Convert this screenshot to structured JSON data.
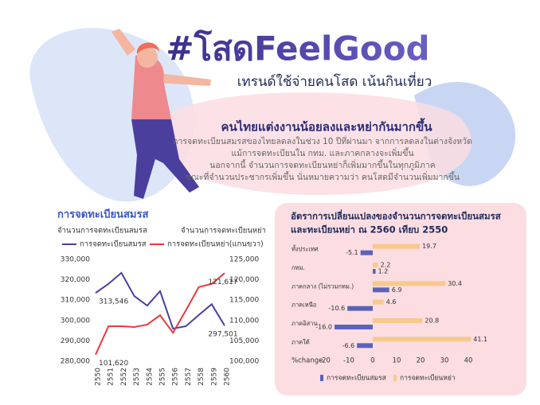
{
  "header": {
    "title": "#โสดFeelGood",
    "subtitle": "เทรนด์ใช้จ่ายคนโสด เน้นกินเที่ยว"
  },
  "summary": {
    "heading": "คนไทยแต่งงานน้อยลงและหย่ากันมากขึ้น",
    "lines": [
      "การจดทะเบียนสมรสของไทยลดลงในช่วง 10 ปีที่ผ่านมา จากการลดลงในต่างจังหวัด",
      "แม้การจดทะเบียนใน กทม. และภาคกลางจะเพิ่มขึ้น",
      "นอกจากนี้ จำนวนการจดทะเบียนหย่าก็เพิ่มมากขึ้นในทุกภูมิภาค",
      "ขณะที่จำนวนประชากรเพิ่มขึ้น นั่นหมายความว่า คนโสดมีจำนวนเพิ่มมากขึ้น"
    ]
  },
  "chart_data": [
    {
      "type": "line",
      "title": "การจดทะเบียนสมรส",
      "ylabel": "จำนวนการจดทะเบียนสมรส",
      "y2label": "จำนวนการจดทะเบียนหย่า",
      "categories": [
        "2550",
        "2551",
        "2552",
        "2553",
        "2554",
        "2555",
        "2556",
        "2557",
        "2558",
        "2559",
        "2560"
      ],
      "series": [
        {
          "name": "การจดทะเบียนสมรส",
          "color": "#4b3f9e",
          "values": [
            313546,
            318000,
            323400,
            312000,
            307300,
            314400,
            296000,
            297200,
            302700,
            308000,
            297501
          ],
          "value_labels": [
            "313,546",
            null,
            null,
            null,
            null,
            null,
            null,
            null,
            null,
            null,
            "297,501"
          ]
        },
        {
          "name": "การจดทะเบียนหย่า(แกนขวา)",
          "color": "#e8393f",
          "axis": "y2",
          "values": [
            101620,
            108600,
            108600,
            108400,
            109000,
            111300,
            107000,
            112500,
            118200,
            119000,
            121617
          ],
          "value_labels": [
            "101,620",
            null,
            null,
            null,
            null,
            null,
            null,
            null,
            null,
            null,
            "121,617"
          ]
        }
      ],
      "ylim": [
        280000,
        330000
      ],
      "yticks": [
        {
          "value": 280000,
          "label": "280,000"
        },
        {
          "value": 290000,
          "label": "290,000"
        },
        {
          "value": 300000,
          "label": "300,000"
        },
        {
          "value": 310000,
          "label": "310,000"
        },
        {
          "value": 320000,
          "label": "320,000"
        },
        {
          "value": 330000,
          "label": "330,000"
        }
      ],
      "y2lim": [
        100000,
        125000
      ],
      "y2ticks": [
        {
          "value": 100000,
          "label": "100,000"
        },
        {
          "value": 105000,
          "label": "105,000"
        },
        {
          "value": 110000,
          "label": "110,000"
        },
        {
          "value": 115000,
          "label": "115,000"
        },
        {
          "value": 120000,
          "label": "120,000"
        },
        {
          "value": 125000,
          "label": "125,000"
        }
      ]
    },
    {
      "type": "hbar",
      "title": [
        "อัตราการเปลี่ยนแปลงของจำนวนการจดทะเบียนสมรส",
        "และทะเบียนหย่า ณ 2560 เทียบ 2550"
      ],
      "categories": [
        "ทั้งประเทศ",
        "กทม.",
        "ภาคกลาง (ไม่รวมกทม.)",
        "ภาคเหนือ",
        "ภาคอิสาน",
        "ภาคใต้"
      ],
      "xlabel": "%change",
      "series": [
        {
          "name": "การจดทะเบียนสมรส",
          "color": "#5a63b8",
          "values": [
            -5.1,
            1.2,
            6.9,
            -10.6,
            -16.0,
            -6.6
          ],
          "value_labels": [
            null,
            null,
            null,
            null,
            "-16.0",
            null
          ]
        },
        {
          "name": "การจดทะเบียนหย่า",
          "color": "#f7c98c",
          "values": [
            19.7,
            2.2,
            30.4,
            4.6,
            20.8,
            41.1
          ]
        }
      ],
      "xlim": [
        -22,
        43
      ],
      "xticks": [
        -20,
        -10,
        0,
        10,
        20,
        30,
        40
      ]
    }
  ]
}
